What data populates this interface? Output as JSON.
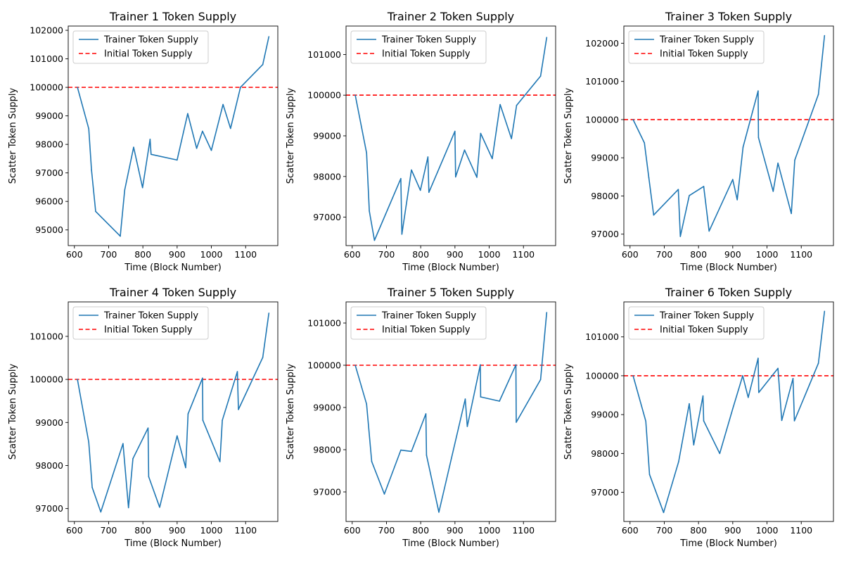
{
  "colors": {
    "series_line": "#1f77b4",
    "reference_line": "#ff0000",
    "background": "#ffffff",
    "axes": "#000000",
    "legend_border": "#cccccc"
  },
  "legend": {
    "placement": "upper-left"
  },
  "chart_data": [
    {
      "type": "line",
      "title": "Trainer 1 Token Supply",
      "xlabel": "Time (Block Number)",
      "ylabel": "Scatter Token Supply",
      "xlim": [
        582,
        1194
      ],
      "ylim": [
        94450,
        102150
      ],
      "xticks": [
        600,
        700,
        800,
        900,
        1000,
        1100
      ],
      "yticks": [
        95000,
        96000,
        97000,
        98000,
        99000,
        100000,
        101000,
        102000
      ],
      "grid": false,
      "series": [
        {
          "name": "Trainer Token Supply",
          "x": [
            609,
            642,
            650,
            662,
            734,
            747,
            773,
            799,
            821,
            824,
            900,
            931,
            957,
            974,
            1000,
            1034,
            1056,
            1085,
            1150,
            1168
          ],
          "y": [
            100000,
            98550,
            97100,
            95650,
            94780,
            96400,
            97900,
            96480,
            98180,
            97650,
            97450,
            99080,
            97860,
            98460,
            97790,
            99400,
            98560,
            100000,
            100800,
            101780
          ]
        }
      ],
      "reference_lines": [
        {
          "name": "Initial Token Supply",
          "y": 100000
        }
      ]
    },
    {
      "type": "line",
      "title": "Trainer 2 Token Supply",
      "xlabel": "Time (Block Number)",
      "ylabel": "Scatter Token Supply",
      "xlim": [
        582,
        1194
      ],
      "ylim": [
        96300,
        101700
      ],
      "xticks": [
        600,
        700,
        800,
        900,
        1000,
        1100
      ],
      "yticks": [
        97000,
        98000,
        99000,
        100000,
        101000
      ],
      "grid": false,
      "series": [
        {
          "name": "Trainer Token Supply",
          "x": [
            609,
            642,
            650,
            665,
            742,
            745,
            773,
            799,
            821,
            824,
            900,
            902,
            928,
            964,
            975,
            1009,
            1032,
            1065,
            1080,
            1150,
            1168
          ],
          "y": [
            100000,
            98580,
            97150,
            96430,
            97950,
            96580,
            98160,
            97660,
            98480,
            97610,
            99110,
            97990,
            98650,
            97980,
            99060,
            98440,
            99770,
            98930,
            99750,
            100470,
            101420
          ]
        }
      ],
      "reference_lines": [
        {
          "name": "Initial Token Supply",
          "y": 100000
        }
      ]
    },
    {
      "type": "line",
      "title": "Trainer 3 Token Supply",
      "xlabel": "Time (Block Number)",
      "ylabel": "Scatter Token Supply",
      "xlim": [
        582,
        1194
      ],
      "ylim": [
        96700,
        102450
      ],
      "xticks": [
        600,
        700,
        800,
        900,
        1000,
        1100
      ],
      "yticks": [
        97000,
        98000,
        99000,
        100000,
        101000,
        102000
      ],
      "grid": false,
      "series": [
        {
          "name": "Trainer Token Supply",
          "x": [
            609,
            642,
            655,
            669,
            741,
            747,
            773,
            815,
            831,
            900,
            913,
            930,
            974,
            975,
            1018,
            1032,
            1071,
            1081,
            1150,
            1168
          ],
          "y": [
            100000,
            99390,
            98480,
            97500,
            98170,
            96940,
            98010,
            98250,
            97080,
            98430,
            97900,
            99280,
            100750,
            99530,
            98120,
            98860,
            97540,
            98940,
            100660,
            102200
          ]
        }
      ],
      "reference_lines": [
        {
          "name": "Initial Token Supply",
          "y": 100000
        }
      ]
    },
    {
      "type": "line",
      "title": "Trainer 4 Token Supply",
      "xlabel": "Time (Block Number)",
      "ylabel": "Scatter Token Supply",
      "xlim": [
        582,
        1194
      ],
      "ylim": [
        96700,
        101800
      ],
      "xticks": [
        600,
        700,
        800,
        900,
        1000,
        1100
      ],
      "yticks": [
        97000,
        98000,
        99000,
        100000,
        101000
      ],
      "grid": false,
      "series": [
        {
          "name": "Trainer Token Supply",
          "x": [
            609,
            642,
            652,
            677,
            742,
            758,
            771,
            815,
            817,
            849,
            900,
            925,
            932,
            974,
            975,
            1025,
            1032,
            1076,
            1079,
            1150,
            1168
          ],
          "y": [
            100000,
            98540,
            97490,
            96920,
            98510,
            97020,
            98160,
            98870,
            97740,
            97030,
            98690,
            97950,
            99200,
            100030,
            99050,
            98090,
            99050,
            100180,
            99300,
            100510,
            101540
          ]
        }
      ],
      "reference_lines": [
        {
          "name": "Initial Token Supply",
          "y": 100000
        }
      ]
    },
    {
      "type": "line",
      "title": "Trainer 5 Token Supply",
      "xlabel": "Time (Block Number)",
      "ylabel": "Scatter Token Supply",
      "xlim": [
        582,
        1194
      ],
      "ylim": [
        96300,
        101500
      ],
      "xticks": [
        600,
        700,
        800,
        900,
        1000,
        1100
      ],
      "yticks": [
        97000,
        98000,
        99000,
        100000,
        101000
      ],
      "grid": false,
      "series": [
        {
          "name": "Trainer Token Supply",
          "x": [
            609,
            642,
            657,
            694,
            742,
            773,
            815,
            817,
            853,
            930,
            936,
            974,
            975,
            1030,
            1078,
            1079,
            1150,
            1168
          ],
          "y": [
            100000,
            99080,
            97720,
            96950,
            97990,
            97960,
            98850,
            97870,
            96520,
            99200,
            98550,
            100010,
            99250,
            99150,
            100010,
            98650,
            99660,
            101250
          ]
        }
      ],
      "reference_lines": [
        {
          "name": "Initial Token Supply",
          "y": 100000
        }
      ]
    },
    {
      "type": "line",
      "title": "Trainer 6 Token Supply",
      "xlabel": "Time (Block Number)",
      "ylabel": "Scatter Token Supply",
      "xlim": [
        582,
        1194
      ],
      "ylim": [
        96250,
        101900
      ],
      "xticks": [
        600,
        700,
        800,
        900,
        1000,
        1100
      ],
      "yticks": [
        97000,
        98000,
        99000,
        100000,
        101000
      ],
      "grid": false,
      "series": [
        {
          "name": "Trainer Token Supply",
          "x": [
            609,
            646,
            657,
            698,
            742,
            773,
            786,
            813,
            815,
            862,
            900,
            929,
            945,
            974,
            976,
            1032,
            1043,
            1076,
            1080,
            1150,
            1168
          ],
          "y": [
            100000,
            98830,
            97460,
            96480,
            97790,
            99280,
            98220,
            99480,
            98840,
            98000,
            99150,
            100000,
            99440,
            100450,
            99570,
            100190,
            98850,
            99930,
            98840,
            100320,
            101660
          ]
        }
      ],
      "reference_lines": [
        {
          "name": "Initial Token Supply",
          "y": 100000
        }
      ]
    }
  ]
}
